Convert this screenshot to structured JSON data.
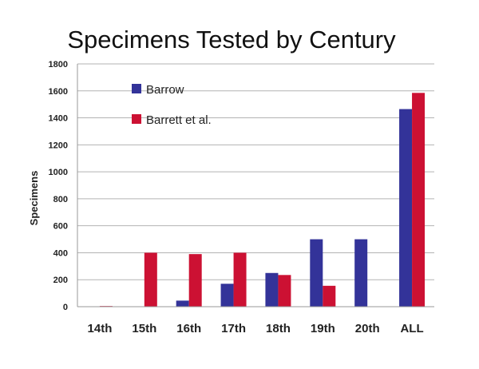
{
  "chart_data": {
    "type": "bar",
    "title": "Specimens Tested by Century",
    "xlabel": "",
    "ylabel": "Specimens",
    "categories": [
      "14th",
      "15th",
      "16th",
      "17th",
      "18th",
      "19th",
      "20th",
      "ALL"
    ],
    "ylim": [
      0,
      1800
    ],
    "yticks": [
      0,
      200,
      400,
      600,
      800,
      1000,
      1200,
      1400,
      1600,
      1800
    ],
    "grid": true,
    "legend_position": "top-left",
    "series": [
      {
        "name": "Barrow",
        "color": "#333399",
        "values": [
          0,
          0,
          45,
          170,
          250,
          500,
          500,
          1465
        ]
      },
      {
        "name": "Barrett et al.",
        "color": "#cc1133",
        "values": [
          5,
          400,
          390,
          400,
          235,
          155,
          0,
          1585
        ]
      }
    ]
  },
  "colors": {
    "grid": "#b3b3b3",
    "axis": "#999999",
    "background": "#ffffff"
  }
}
